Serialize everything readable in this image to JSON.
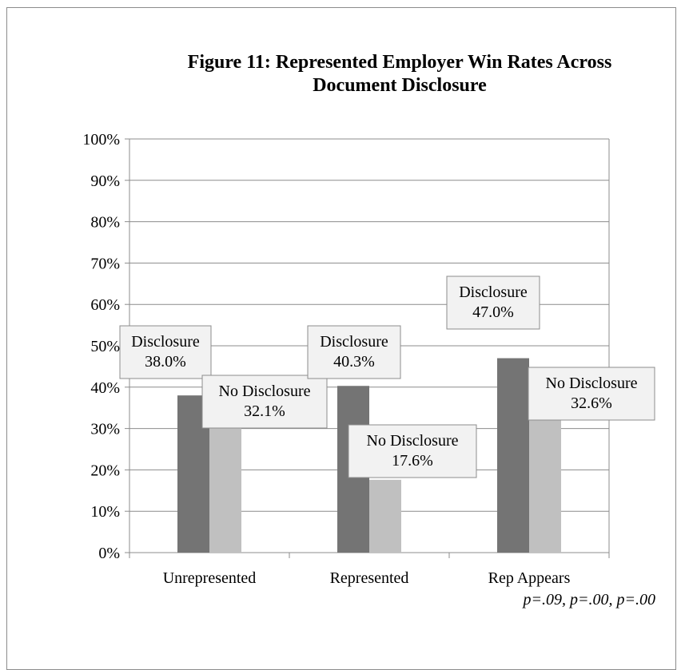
{
  "chart_data": {
    "type": "bar",
    "title": "Figure 11: Represented Employer Win Rates Across Document Disclosure",
    "title_lines": [
      "Figure 11: Represented Employer Win Rates Across",
      "Document Disclosure"
    ],
    "categories": [
      "Unrepresented",
      "Represented",
      "Rep Appears"
    ],
    "series": [
      {
        "name": "Disclosure",
        "values": [
          38.0,
          40.3,
          47.0
        ],
        "color": "#747474"
      },
      {
        "name": "No Disclosure",
        "values": [
          32.1,
          17.6,
          32.6
        ],
        "color": "#c0c0c0"
      }
    ],
    "data_labels": [
      [
        "Disclosure",
        "38.0%"
      ],
      [
        "No Disclosure",
        "32.1%"
      ],
      [
        "Disclosure",
        "40.3%"
      ],
      [
        "No Disclosure",
        "17.6%"
      ],
      [
        "Disclosure",
        "47.0%"
      ],
      [
        "No Disclosure",
        "32.6%"
      ]
    ],
    "y_ticks": [
      "0%",
      "10%",
      "20%",
      "30%",
      "40%",
      "50%",
      "60%",
      "70%",
      "80%",
      "90%",
      "100%"
    ],
    "ylim": [
      0,
      100
    ],
    "grid": true,
    "legend": "none",
    "xlabel": "",
    "ylabel": "",
    "annotation": "p=.09, p=.00, p=.00"
  }
}
